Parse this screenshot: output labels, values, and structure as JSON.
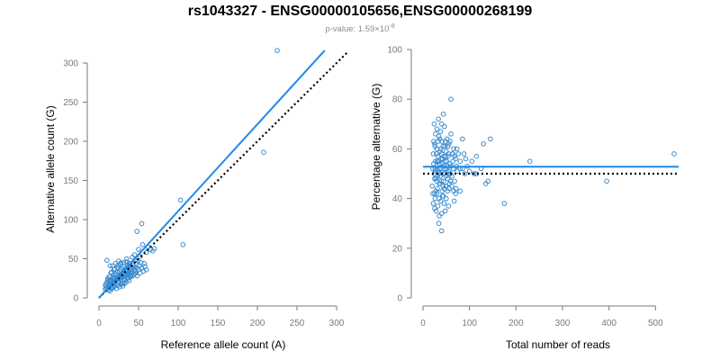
{
  "figure": {
    "title": "rs1043327 - ENSG00000105656,ENSG00000268199",
    "subtitle_prefix": "p-value: 1.59×10",
    "subtitle_exponent": "-8",
    "point_color": "#3a8ccf",
    "line_color": "#1f88ea",
    "reference_line_color": "#000000"
  },
  "chart_data": [
    {
      "type": "scatter",
      "name": "allele-counts",
      "xlabel": "Reference allele count (A)",
      "ylabel": "Alternative allele count (G)",
      "xlim": [
        0,
        300
      ],
      "ylim": [
        0,
        300
      ],
      "xticks": [
        0,
        50,
        100,
        150,
        200,
        250,
        300
      ],
      "yticks": [
        0,
        50,
        100,
        150,
        200,
        250,
        300
      ],
      "fit_line": {
        "x": [
          0,
          285
        ],
        "y": [
          0,
          316
        ]
      },
      "reference_line": {
        "x": [
          0,
          313
        ],
        "y": [
          0,
          313
        ]
      },
      "points": [
        [
          8,
          11
        ],
        [
          10,
          14
        ],
        [
          12,
          10
        ],
        [
          14,
          19
        ],
        [
          15,
          12
        ],
        [
          16,
          22
        ],
        [
          17,
          15
        ],
        [
          18,
          26
        ],
        [
          19,
          18
        ],
        [
          20,
          21
        ],
        [
          21,
          30
        ],
        [
          22,
          17
        ],
        [
          23,
          25
        ],
        [
          24,
          33
        ],
        [
          25,
          20
        ],
        [
          26,
          28
        ],
        [
          27,
          36
        ],
        [
          28,
          24
        ],
        [
          29,
          31
        ],
        [
          30,
          19
        ],
        [
          31,
          40
        ],
        [
          32,
          27
        ],
        [
          33,
          23
        ],
        [
          34,
          35
        ],
        [
          35,
          30
        ],
        [
          36,
          42
        ],
        [
          37,
          26
        ],
        [
          38,
          33
        ],
        [
          39,
          29
        ],
        [
          40,
          37
        ],
        [
          12,
          18
        ],
        [
          13,
          23
        ],
        [
          14,
          9
        ],
        [
          16,
          12
        ],
        [
          18,
          13
        ],
        [
          20,
          15
        ],
        [
          22,
          12
        ],
        [
          24,
          16
        ],
        [
          26,
          14
        ],
        [
          28,
          17
        ],
        [
          30,
          15
        ],
        [
          32,
          18
        ],
        [
          34,
          20
        ],
        [
          36,
          24
        ],
        [
          38,
          22
        ],
        [
          40,
          27
        ],
        [
          42,
          28
        ],
        [
          44,
          35
        ],
        [
          46,
          31
        ],
        [
          48,
          38
        ],
        [
          15,
          32
        ],
        [
          17,
          41
        ],
        [
          19,
          36
        ],
        [
          21,
          44
        ],
        [
          23,
          39
        ],
        [
          25,
          47
        ],
        [
          27,
          43
        ],
        [
          29,
          38
        ],
        [
          31,
          45
        ],
        [
          33,
          37
        ],
        [
          35,
          46
        ],
        [
          37,
          40
        ],
        [
          39,
          44
        ],
        [
          41,
          32
        ],
        [
          43,
          42
        ],
        [
          45,
          36
        ],
        [
          47,
          44
        ],
        [
          49,
          47
        ],
        [
          51,
          41
        ],
        [
          53,
          45
        ],
        [
          11,
          23
        ],
        [
          13,
          27
        ],
        [
          16,
          33
        ],
        [
          18,
          29
        ],
        [
          20,
          37
        ],
        [
          22,
          26
        ],
        [
          24,
          42
        ],
        [
          26,
          34
        ],
        [
          28,
          45
        ],
        [
          30,
          29
        ],
        [
          15,
          21
        ],
        [
          17,
          20
        ],
        [
          19,
          24
        ],
        [
          21,
          22
        ],
        [
          23,
          28
        ],
        [
          25,
          24
        ],
        [
          27,
          30
        ],
        [
          29,
          26
        ],
        [
          31,
          33
        ],
        [
          33,
          29
        ],
        [
          35,
          34
        ],
        [
          37,
          30
        ],
        [
          39,
          36
        ],
        [
          41,
          34
        ],
        [
          43,
          38
        ],
        [
          45,
          40
        ],
        [
          9,
          18
        ],
        [
          11,
          25
        ],
        [
          10,
          48
        ],
        [
          14,
          41
        ],
        [
          8,
          16
        ],
        [
          9,
          13
        ],
        [
          10,
          20
        ],
        [
          12,
          15
        ],
        [
          13,
          17
        ],
        [
          14,
          22
        ],
        [
          16,
          18
        ],
        [
          17,
          25
        ],
        [
          19,
          20
        ],
        [
          20,
          26
        ],
        [
          22,
          23
        ],
        [
          24,
          21
        ],
        [
          26,
          25
        ],
        [
          28,
          22
        ],
        [
          30,
          27
        ],
        [
          32,
          24
        ],
        [
          34,
          28
        ],
        [
          36,
          26
        ],
        [
          38,
          31
        ],
        [
          40,
          28
        ],
        [
          42,
          33
        ],
        [
          44,
          30
        ],
        [
          46,
          34
        ],
        [
          48,
          28
        ],
        [
          50,
          36
        ],
        [
          52,
          32
        ],
        [
          54,
          38
        ],
        [
          56,
          34
        ],
        [
          58,
          40
        ],
        [
          60,
          36
        ],
        [
          45,
          55
        ],
        [
          50,
          62
        ],
        [
          52,
          53
        ],
        [
          55,
          68
        ],
        [
          60,
          58
        ],
        [
          62,
          65
        ],
        [
          65,
          62
        ],
        [
          68,
          60
        ],
        [
          70,
          63
        ],
        [
          54,
          95
        ],
        [
          48,
          85
        ],
        [
          103,
          125
        ],
        [
          106,
          68
        ],
        [
          208,
          186
        ],
        [
          225,
          316
        ],
        [
          42,
          52
        ],
        [
          46,
          48
        ],
        [
          38,
          44
        ],
        [
          35,
          50
        ],
        [
          57,
          44
        ]
      ]
    },
    {
      "type": "scatter",
      "name": "percentage-alternative",
      "xlabel": "Total number of reads",
      "ylabel": "Percentage alternative (G)",
      "xlim": [
        0,
        540
      ],
      "ylim": [
        0,
        100
      ],
      "xticks": [
        0,
        100,
        200,
        300,
        400,
        500
      ],
      "yticks": [
        0,
        20,
        40,
        60,
        80,
        100
      ],
      "fit_line": {
        "x": [
          0,
          550
        ],
        "y": [
          52.8,
          52.8
        ]
      },
      "reference_line": {
        "x": [
          0,
          550
        ],
        "y": [
          50,
          50
        ]
      },
      "points": [
        [
          20,
          45
        ],
        [
          22,
          58
        ],
        [
          24,
          50
        ],
        [
          25,
          62
        ],
        [
          26,
          40
        ],
        [
          27,
          55
        ],
        [
          28,
          48
        ],
        [
          29,
          53
        ],
        [
          30,
          60
        ],
        [
          31,
          44
        ],
        [
          32,
          57
        ],
        [
          33,
          51
        ],
        [
          34,
          65
        ],
        [
          35,
          46
        ],
        [
          36,
          54
        ],
        [
          37,
          49
        ],
        [
          38,
          67
        ],
        [
          39,
          52
        ],
        [
          40,
          58
        ],
        [
          41,
          43
        ],
        [
          42,
          56
        ],
        [
          43,
          61
        ],
        [
          44,
          47
        ],
        [
          45,
          53
        ],
        [
          46,
          69
        ],
        [
          47,
          50
        ],
        [
          48,
          55
        ],
        [
          49,
          45
        ],
        [
          50,
          59
        ],
        [
          51,
          52
        ],
        [
          52,
          64
        ],
        [
          53,
          48
        ],
        [
          54,
          57
        ],
        [
          55,
          51
        ],
        [
          56,
          62
        ],
        [
          57,
          46
        ],
        [
          58,
          54
        ],
        [
          59,
          50
        ],
        [
          60,
          66
        ],
        [
          61,
          53
        ],
        [
          62,
          49
        ],
        [
          63,
          58
        ],
        [
          64,
          55
        ],
        [
          65,
          52
        ],
        [
          66,
          60
        ],
        [
          68,
          47
        ],
        [
          70,
          56
        ],
        [
          72,
          53
        ],
        [
          74,
          51
        ],
        [
          76,
          58
        ],
        [
          22,
          38
        ],
        [
          25,
          36
        ],
        [
          28,
          35
        ],
        [
          30,
          42
        ],
        [
          32,
          37
        ],
        [
          35,
          33
        ],
        [
          38,
          39
        ],
        [
          40,
          34
        ],
        [
          42,
          41
        ],
        [
          45,
          38
        ],
        [
          48,
          35
        ],
        [
          50,
          40
        ],
        [
          24,
          70
        ],
        [
          27,
          66
        ],
        [
          30,
          68
        ],
        [
          33,
          72
        ],
        [
          36,
          64
        ],
        [
          40,
          70
        ],
        [
          44,
          74
        ],
        [
          48,
          63
        ],
        [
          26,
          52
        ],
        [
          29,
          47
        ],
        [
          31,
          55
        ],
        [
          34,
          50
        ],
        [
          37,
          46
        ],
        [
          39,
          56
        ],
        [
          43,
          50
        ],
        [
          46,
          44
        ],
        [
          49,
          57
        ],
        [
          53,
          53
        ],
        [
          21,
          52
        ],
        [
          23,
          54
        ],
        [
          25,
          48
        ],
        [
          27,
          51
        ],
        [
          29,
          58
        ],
        [
          31,
          49
        ],
        [
          33,
          55
        ],
        [
          35,
          52
        ],
        [
          37,
          59
        ],
        [
          39,
          47
        ],
        [
          41,
          54
        ],
        [
          43,
          45
        ],
        [
          45,
          57
        ],
        [
          47,
          52
        ],
        [
          49,
          49
        ],
        [
          51,
          55
        ],
        [
          53,
          43
        ],
        [
          55,
          58
        ],
        [
          57,
          50
        ],
        [
          59,
          47
        ],
        [
          21,
          42
        ],
        [
          23,
          63
        ],
        [
          26,
          61
        ],
        [
          28,
          43
        ],
        [
          32,
          63
        ],
        [
          34,
          40
        ],
        [
          38,
          60
        ],
        [
          41,
          63
        ],
        [
          44,
          41
        ],
        [
          47,
          61
        ],
        [
          50,
          45
        ],
        [
          54,
          61
        ],
        [
          56,
          44
        ],
        [
          58,
          63
        ],
        [
          62,
          45
        ],
        [
          64,
          58
        ],
        [
          66,
          43
        ],
        [
          68,
          57
        ],
        [
          71,
          44
        ],
        [
          73,
          60
        ],
        [
          80,
          55
        ],
        [
          85,
          52
        ],
        [
          88,
          58
        ],
        [
          90,
          50
        ],
        [
          92,
          56
        ],
        [
          95,
          53
        ],
        [
          100,
          51
        ],
        [
          105,
          55
        ],
        [
          110,
          50
        ],
        [
          115,
          57
        ],
        [
          40,
          27
        ],
        [
          34,
          30
        ],
        [
          60,
          80
        ],
        [
          85,
          64
        ],
        [
          80,
          52
        ],
        [
          80,
          43
        ],
        [
          115,
          50
        ],
        [
          125,
          52
        ],
        [
          130,
          62
        ],
        [
          135,
          46
        ],
        [
          140,
          47
        ],
        [
          145,
          64
        ],
        [
          175,
          38
        ],
        [
          230,
          55
        ],
        [
          395,
          47
        ],
        [
          540,
          58
        ],
        [
          70,
          42
        ],
        [
          67,
          39
        ],
        [
          25,
          42
        ],
        [
          55,
          37
        ]
      ]
    }
  ]
}
